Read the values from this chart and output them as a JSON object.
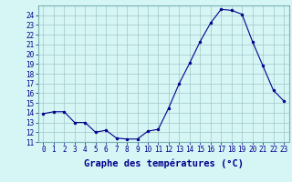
{
  "hours": [
    0,
    1,
    2,
    3,
    4,
    5,
    6,
    7,
    8,
    9,
    10,
    11,
    12,
    13,
    14,
    15,
    16,
    17,
    18,
    19,
    20,
    21,
    22,
    23
  ],
  "temps": [
    13.9,
    14.1,
    14.1,
    13.0,
    13.0,
    12.0,
    12.2,
    11.4,
    11.3,
    11.3,
    12.1,
    12.3,
    14.5,
    17.0,
    19.1,
    21.3,
    23.2,
    24.6,
    24.5,
    24.1,
    21.3,
    18.8,
    16.3,
    15.2
  ],
  "line_color": "#00008b",
  "marker_color": "#00008b",
  "bg_color": "#d6f5f5",
  "grid_color": "#a0c8c8",
  "xlabel": "Graphe des températures (°C)",
  "xlabel_color": "#00008b",
  "ylim": [
    11,
    25
  ],
  "yticks": [
    11,
    12,
    13,
    14,
    15,
    16,
    17,
    18,
    19,
    20,
    21,
    22,
    23,
    24
  ],
  "xlim": [
    -0.5,
    23.5
  ],
  "xticks": [
    0,
    1,
    2,
    3,
    4,
    5,
    6,
    7,
    8,
    9,
    10,
    11,
    12,
    13,
    14,
    15,
    16,
    17,
    18,
    19,
    20,
    21,
    22,
    23
  ],
  "tick_fontsize": 5.5,
  "xlabel_fontsize": 7.5,
  "tick_color": "#00008b",
  "axis_color": "#00008b",
  "spine_color": "#7ab0b0"
}
